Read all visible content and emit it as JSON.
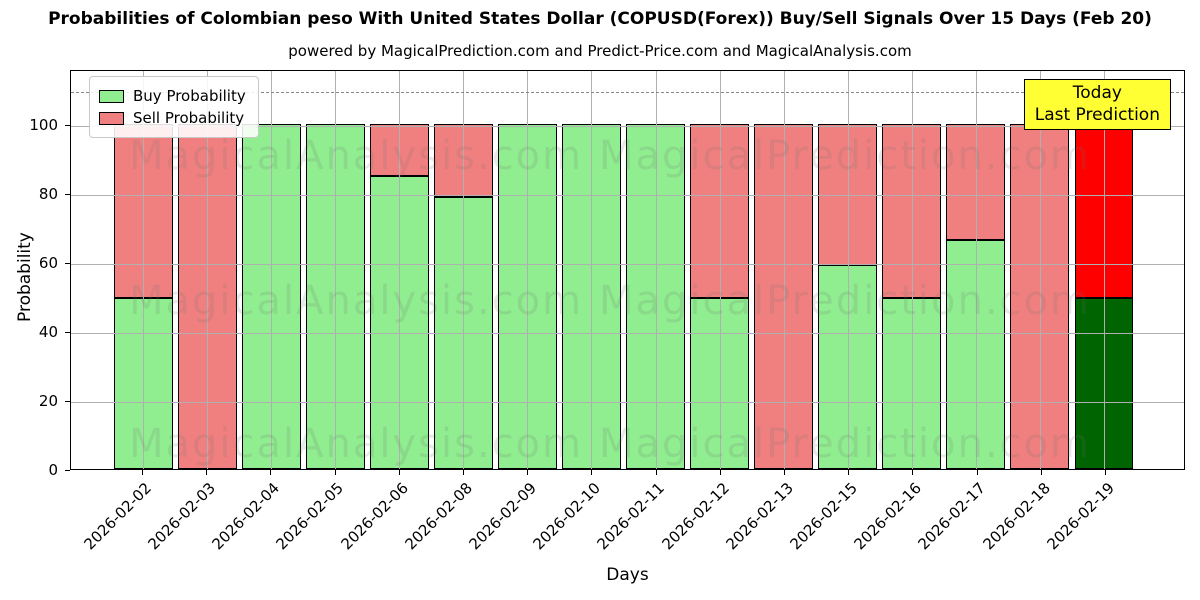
{
  "title": "Probabilities of Colombian peso With United States Dollar (COPUSD(Forex)) Buy/Sell Signals Over 15 Days (Feb 20)",
  "subtitle": "powered by MagicalPrediction.com and Predict-Price.com and MagicalAnalysis.com",
  "axes": {
    "x_label": "Days",
    "y_label": "Probability"
  },
  "legend": {
    "items": [
      {
        "label": "Buy Probability",
        "color": "#90EE90"
      },
      {
        "label": "Sell Probability",
        "color": "#F08080"
      }
    ]
  },
  "highlight_box": {
    "line1": "Today",
    "line2": "Last Prediction",
    "bg_color": "#FFFF33",
    "border_color": "#000000"
  },
  "watermarks": {
    "left_text": "MagicalAnalysis.com",
    "right_text": "MagicalPrediction.com"
  },
  "chart_data": {
    "type": "bar",
    "stacked": true,
    "title": "Probabilities of Colombian peso With United States Dollar (COPUSD(Forex)) Buy/Sell Signals Over 15 Days (Feb 20)",
    "xlabel": "Days",
    "ylabel": "Probability",
    "categories": [
      "2026-02-02",
      "2026-02-03",
      "2026-02-04",
      "2026-02-05",
      "2026-02-06",
      "2026-02-08",
      "2026-02-09",
      "2026-02-10",
      "2026-02-11",
      "2026-02-12",
      "2026-02-13",
      "2026-02-15",
      "2026-02-16",
      "2026-02-17",
      "2026-02-18",
      "2026-02-19"
    ],
    "series": [
      {
        "name": "Buy Probability",
        "color": "#90EE90",
        "values": [
          49.5,
          0,
          100,
          100,
          85,
          78.8,
          100,
          100,
          100,
          49.5,
          0,
          59.3,
          49.5,
          66.4,
          0,
          49.5
        ]
      },
      {
        "name": "Sell Probability",
        "color": "#F08080",
        "values": [
          50.5,
          100,
          0,
          0,
          15,
          21.2,
          0,
          0,
          0,
          50.5,
          100,
          40.7,
          50.5,
          33.6,
          100,
          50.5
        ]
      }
    ],
    "today_index": 15,
    "today_colors": {
      "buy": "#006400",
      "sell": "#FF0000"
    },
    "yticks": [
      0,
      20,
      40,
      60,
      80,
      100
    ],
    "ylim": [
      0,
      116
    ],
    "dashed_line_y": 110,
    "grid": true,
    "legend_position": "upper left",
    "bar_edge_color": "#000000",
    "grid_color": "#b0b0b0"
  }
}
